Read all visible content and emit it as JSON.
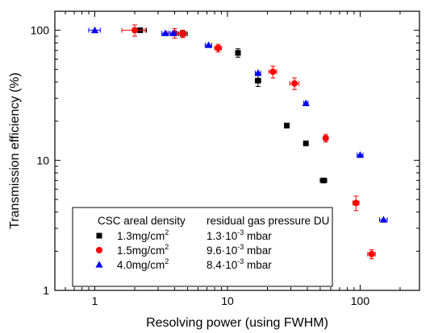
{
  "chart_data": {
    "type": "scatter",
    "xlabel": "Resolving power (using FWHM)",
    "ylabel": "Transmission efficiency (%)",
    "x_scale": "log",
    "y_scale": "log",
    "xlim": [
      0.5,
      280
    ],
    "ylim": [
      1,
      140
    ],
    "x_ticks": [
      1,
      10,
      100
    ],
    "x_tick_labels": [
      "1",
      "10",
      "100"
    ],
    "y_ticks": [
      1,
      10,
      100
    ],
    "y_tick_labels": [
      "1",
      "10",
      "100"
    ],
    "grid": false,
    "legend_position": "bottom-left",
    "legend": {
      "header_col1": "CSC areal density",
      "header_col2": "residual gas pressure DU",
      "entries": [
        {
          "density": "1.3mg/cm",
          "density_exp": "2",
          "pressure_mant": "1.3·10",
          "pressure_exp": "-3",
          "pressure_unit": " mbar"
        },
        {
          "density": "1.5mg/cm",
          "density_exp": "2",
          "pressure_mant": "9.6·10",
          "pressure_exp": "-3",
          "pressure_unit": " mbar"
        },
        {
          "density": "4.0mg/cm",
          "density_exp": "2",
          "pressure_mant": "8.4·10",
          "pressure_exp": "-3",
          "pressure_unit": " mbar"
        }
      ]
    },
    "series": [
      {
        "marker": "square",
        "color": "#000000",
        "points": [
          {
            "x": 2.2,
            "y": 100,
            "xerr": 0.25,
            "yerr": 0
          },
          {
            "x": 4.6,
            "y": 94,
            "xerr": 0.3,
            "yerr": 6
          },
          {
            "x": 12,
            "y": 67,
            "xerr": 0,
            "yerr": 5
          },
          {
            "x": 17,
            "y": 41,
            "xerr": 0.8,
            "yerr": 4
          },
          {
            "x": 28,
            "y": 18.5,
            "xerr": 0.8,
            "yerr": 0
          },
          {
            "x": 39,
            "y": 13.5,
            "xerr": 1,
            "yerr": 0
          },
          {
            "x": 53,
            "y": 7,
            "xerr": 3,
            "yerr": 0
          }
        ]
      },
      {
        "marker": "circle",
        "color": "#ff0000",
        "points": [
          {
            "x": 2.0,
            "y": 100,
            "xerr": 0.4,
            "yerr": 10
          },
          {
            "x": 4.0,
            "y": 95,
            "xerr": 0.5,
            "yerr": 8
          },
          {
            "x": 4.6,
            "y": 94,
            "xerr": 0.4,
            "yerr": 6
          },
          {
            "x": 8.5,
            "y": 73,
            "xerr": 0.5,
            "yerr": 5
          },
          {
            "x": 22,
            "y": 48,
            "xerr": 1.5,
            "yerr": 5
          },
          {
            "x": 32,
            "y": 39,
            "xerr": 2.5,
            "yerr": 4
          },
          {
            "x": 55,
            "y": 14.8,
            "xerr": 2,
            "yerr": 1
          },
          {
            "x": 93,
            "y": 4.7,
            "xerr": 5,
            "yerr": 0.6
          },
          {
            "x": 122,
            "y": 1.9,
            "xerr": 8,
            "yerr": 0.15
          }
        ]
      },
      {
        "marker": "triangle",
        "color": "#0000ff",
        "points": [
          {
            "x": 1.0,
            "y": 100,
            "xerr": 0.1,
            "yerr": 0
          },
          {
            "x": 3.4,
            "y": 95,
            "xerr": 0.2,
            "yerr": 0
          },
          {
            "x": 3.9,
            "y": 95,
            "xerr": 0.2,
            "yerr": 0
          },
          {
            "x": 7.2,
            "y": 77,
            "xerr": 0.4,
            "yerr": 0
          },
          {
            "x": 17,
            "y": 47,
            "xerr": 0.8,
            "yerr": 0
          },
          {
            "x": 39,
            "y": 27.5,
            "xerr": 1.5,
            "yerr": 0
          },
          {
            "x": 100,
            "y": 11,
            "xerr": 5,
            "yerr": 0
          },
          {
            "x": 150,
            "y": 3.5,
            "xerr": 10,
            "yerr": 0
          }
        ]
      }
    ]
  }
}
